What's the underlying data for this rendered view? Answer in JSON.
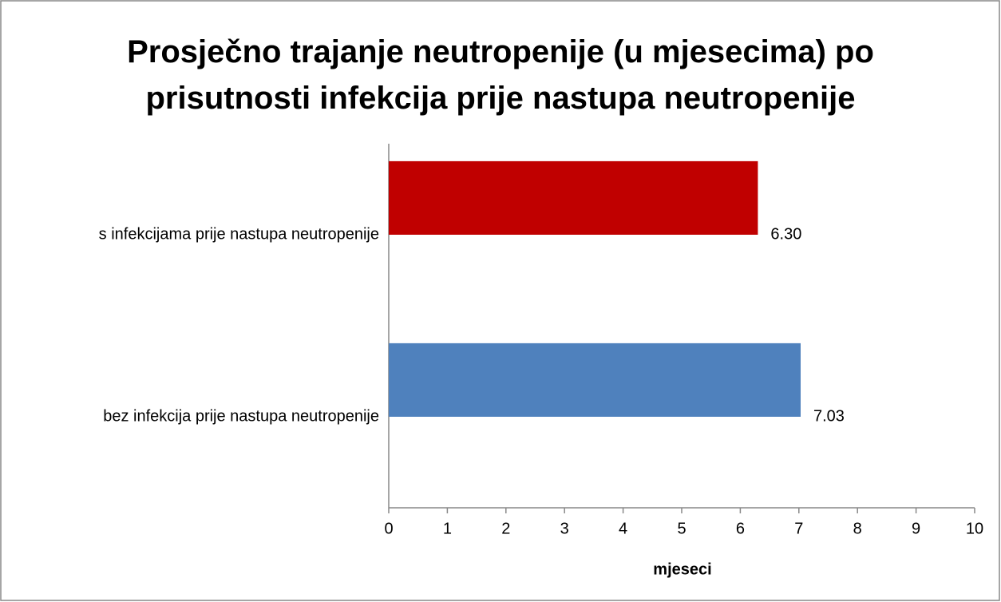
{
  "chart_data": {
    "type": "bar",
    "orientation": "horizontal",
    "title": "Prosječno trajanje neutropenije (u mjesecima) po prisutnosti infekcija prije nastupa neutropenije",
    "categories": [
      "s infekcijama prije nastupa neutropenije",
      "bez infekcija prije nastupa neutropenije"
    ],
    "values": [
      6.3,
      7.03
    ],
    "value_labels": [
      "6.30",
      "7.03"
    ],
    "colors": [
      "#c00000",
      "#4f81bd"
    ],
    "xlabel": "mjeseci",
    "xlim": [
      0,
      10
    ],
    "xticks": [
      0,
      1,
      2,
      3,
      4,
      5,
      6,
      7,
      8,
      9,
      10
    ],
    "grid": false
  }
}
